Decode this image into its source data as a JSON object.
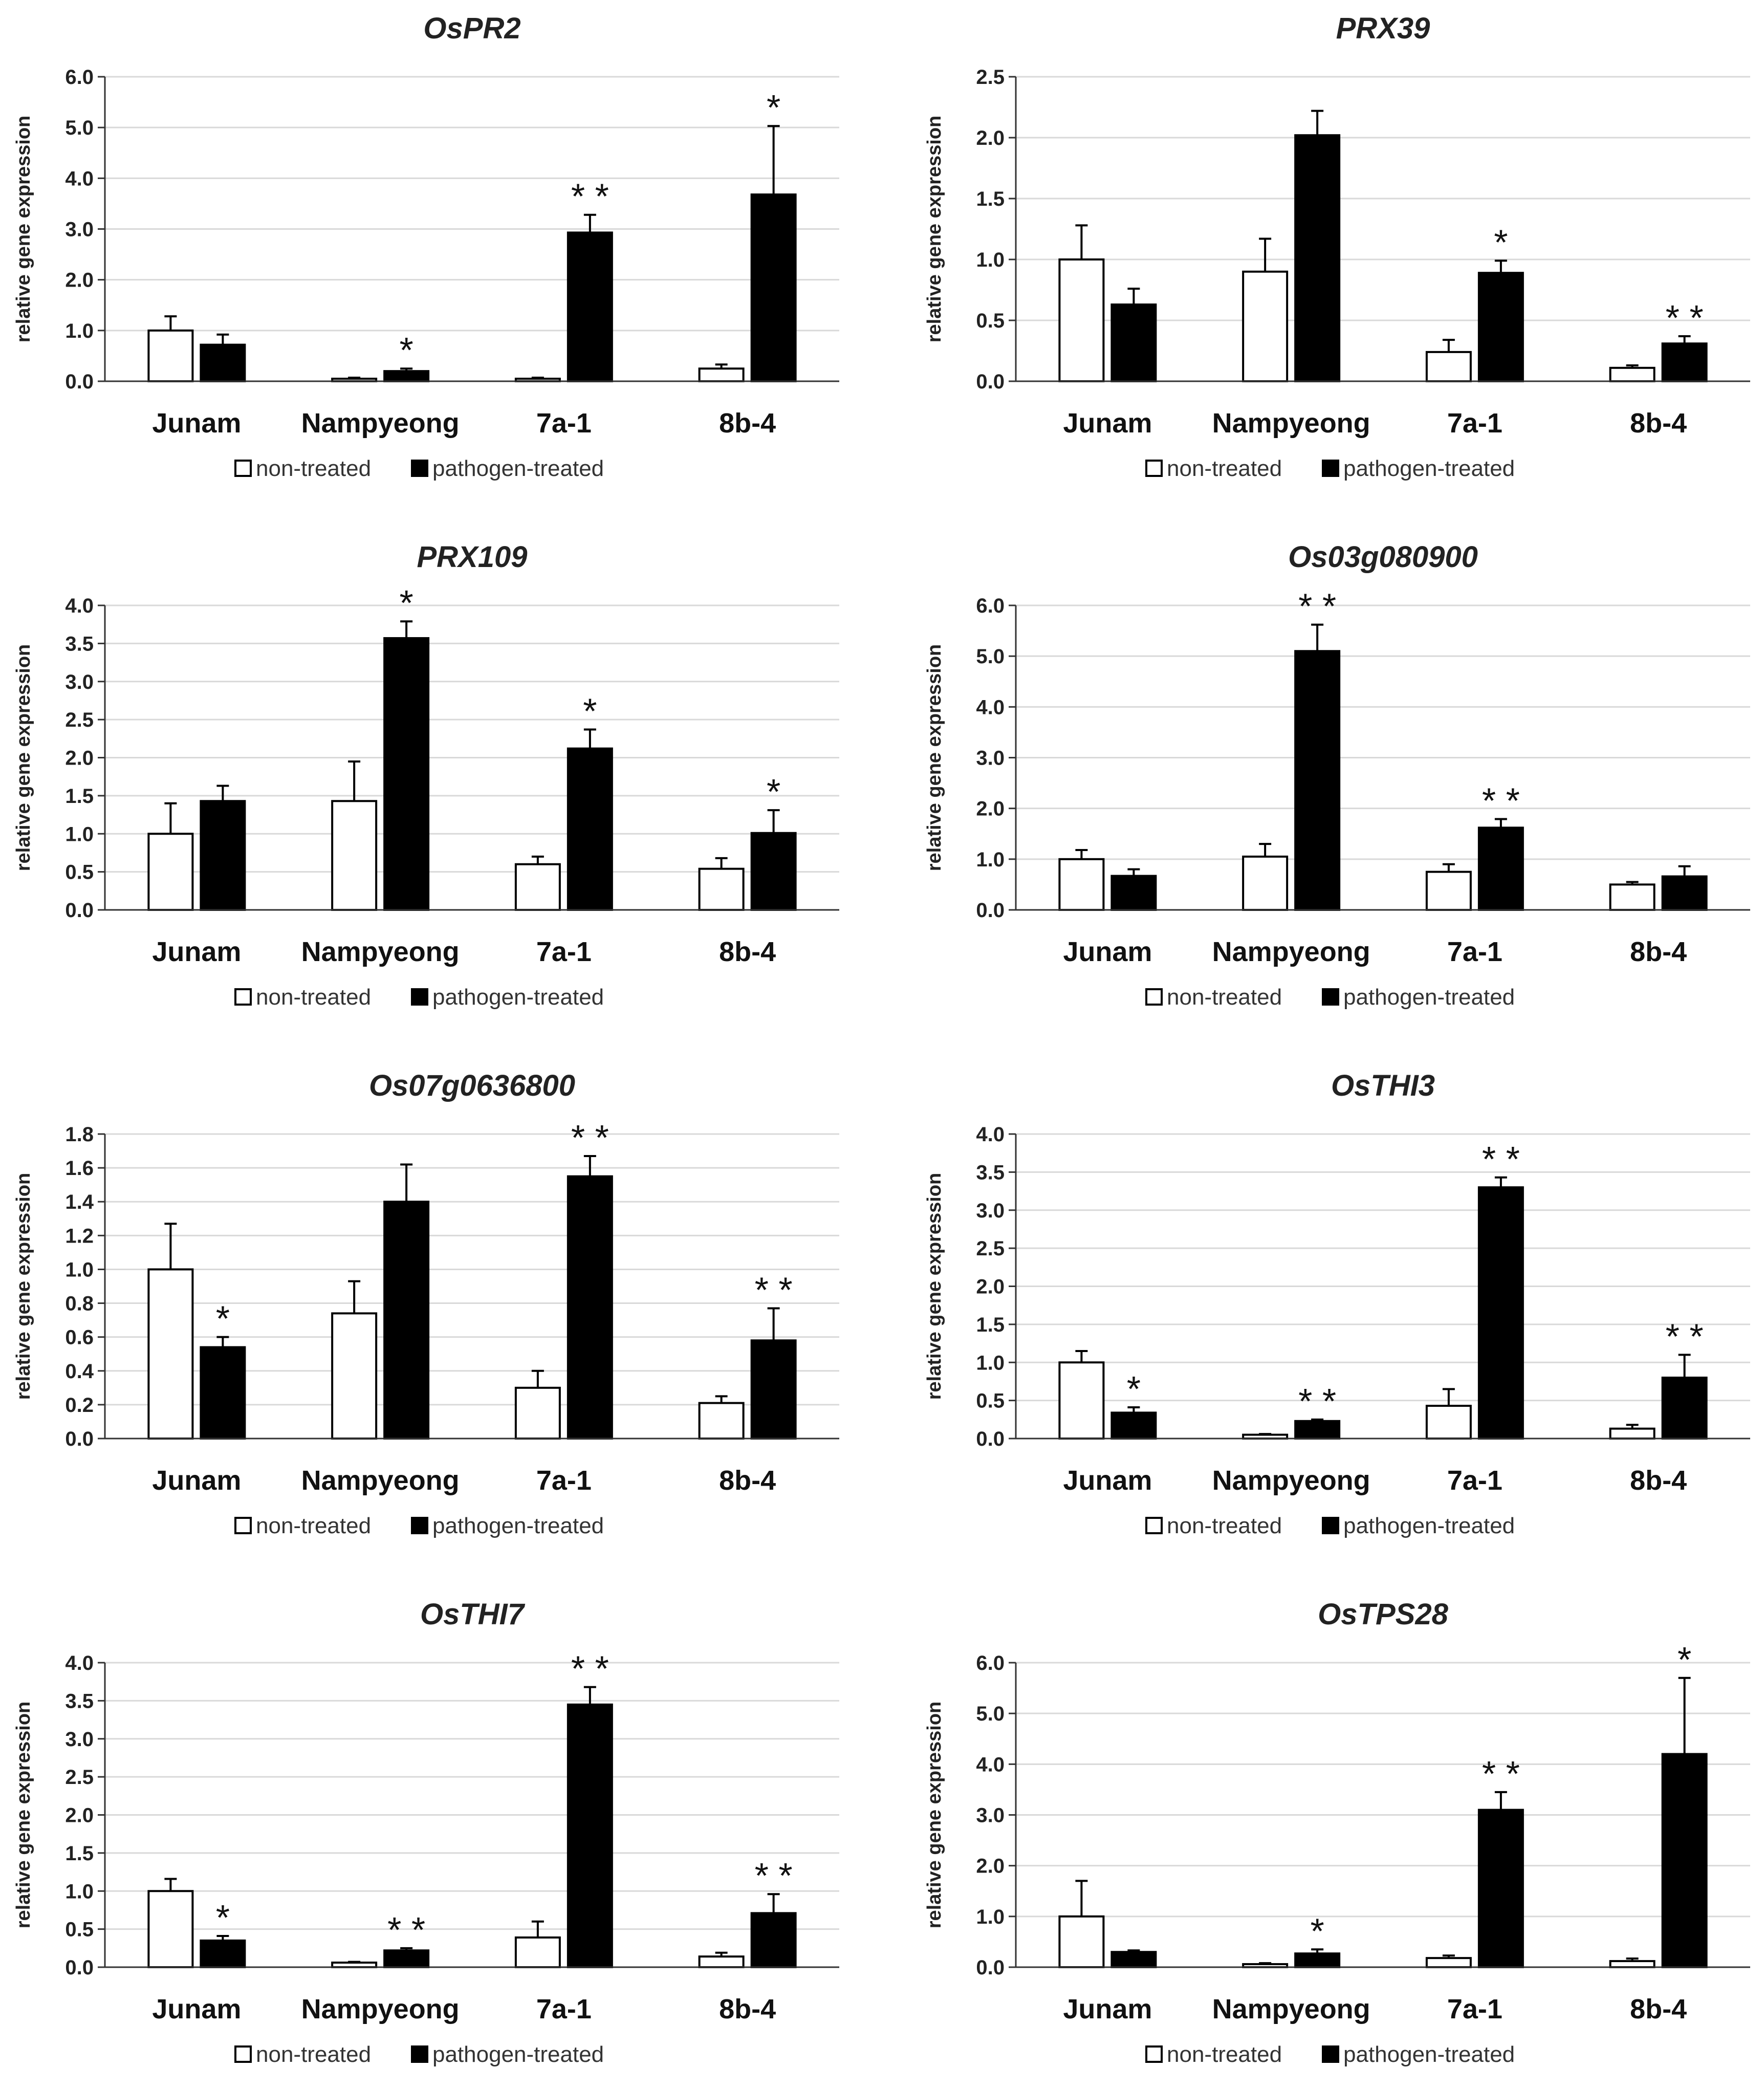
{
  "chart_data": [
    {
      "type": "bar",
      "title": "OsPR2",
      "ylabel": "relative gene expression",
      "ylim": [
        0,
        6
      ],
      "yticks": [
        "0.0",
        "1.0",
        "2.0",
        "3.0",
        "4.0",
        "5.0",
        "6.0"
      ],
      "categories": [
        "Junam",
        "Nampyeong",
        "7a-1",
        "8b-4"
      ],
      "series": [
        {
          "name": "non-treated",
          "color": "#ffffff",
          "values": [
            1.0,
            0.05,
            0.05,
            0.25
          ],
          "errors": [
            0.28,
            0.02,
            0.02,
            0.08
          ]
        },
        {
          "name": "pathogen-treated",
          "color": "#000000",
          "values": [
            0.72,
            0.2,
            2.93,
            3.68
          ],
          "errors": [
            0.2,
            0.05,
            0.35,
            1.35
          ]
        }
      ],
      "significance": [
        "",
        "*",
        "**",
        "*"
      ],
      "legend": [
        "non-treated",
        "pathogen-treated"
      ]
    },
    {
      "type": "bar",
      "title": "PRX39",
      "ylabel": "relative gene expression",
      "ylim": [
        0,
        2.5
      ],
      "yticks": [
        "0.0",
        "0.5",
        "1.0",
        "1.5",
        "2.0",
        "2.5"
      ],
      "categories": [
        "Junam",
        "Nampyeong",
        "7a-1",
        "8b-4"
      ],
      "series": [
        {
          "name": "non-treated",
          "color": "#ffffff",
          "values": [
            1.0,
            0.9,
            0.24,
            0.11
          ],
          "errors": [
            0.28,
            0.27,
            0.1,
            0.02
          ]
        },
        {
          "name": "pathogen-treated",
          "color": "#000000",
          "values": [
            0.63,
            2.02,
            0.89,
            0.31
          ],
          "errors": [
            0.13,
            0.2,
            0.1,
            0.06
          ]
        }
      ],
      "significance": [
        "",
        "",
        "*",
        "**"
      ],
      "legend": [
        "non-treated",
        "pathogen-treated"
      ]
    },
    {
      "type": "bar",
      "title": "PRX109",
      "ylabel": "relative gene expression",
      "ylim": [
        0,
        4
      ],
      "yticks": [
        "0.0",
        "0.5",
        "1.0",
        "1.5",
        "2.0",
        "2.5",
        "3.0",
        "3.5",
        "4.0"
      ],
      "categories": [
        "Junam",
        "Nampyeong",
        "7a-1",
        "8b-4"
      ],
      "series": [
        {
          "name": "non-treated",
          "color": "#ffffff",
          "values": [
            1.0,
            1.43,
            0.6,
            0.54
          ],
          "errors": [
            0.4,
            0.52,
            0.1,
            0.14
          ]
        },
        {
          "name": "pathogen-treated",
          "color": "#000000",
          "values": [
            1.43,
            3.57,
            2.12,
            1.01
          ],
          "errors": [
            0.2,
            0.22,
            0.25,
            0.3
          ]
        }
      ],
      "significance": [
        "",
        "*",
        "*",
        "*"
      ],
      "legend": [
        "non-treated",
        "pathogen-treated"
      ]
    },
    {
      "type": "bar",
      "title": "Os03g080900",
      "ylabel": "relative gene expression",
      "ylim": [
        0,
        6
      ],
      "yticks": [
        "0.0",
        "1.0",
        "2.0",
        "3.0",
        "4.0",
        "5.0",
        "6.0"
      ],
      "categories": [
        "Junam",
        "Nampyeong",
        "7a-1",
        "8b-4"
      ],
      "series": [
        {
          "name": "non-treated",
          "color": "#ffffff",
          "values": [
            1.0,
            1.05,
            0.75,
            0.5
          ],
          "errors": [
            0.18,
            0.25,
            0.15,
            0.05
          ]
        },
        {
          "name": "pathogen-treated",
          "color": "#000000",
          "values": [
            0.67,
            5.1,
            1.62,
            0.66
          ],
          "errors": [
            0.13,
            0.52,
            0.17,
            0.2
          ]
        }
      ],
      "significance": [
        "",
        "**",
        "**",
        ""
      ],
      "legend": [
        "non-treated",
        "pathogen-treated"
      ]
    },
    {
      "type": "bar",
      "title": "Os07g0636800",
      "ylabel": "relative gene expression",
      "ylim": [
        0,
        1.8
      ],
      "yticks": [
        "0.0",
        "0.2",
        "0.4",
        "0.6",
        "0.8",
        "1.0",
        "1.2",
        "1.4",
        "1.6",
        "1.8"
      ],
      "categories": [
        "Junam",
        "Nampyeong",
        "7a-1",
        "8b-4"
      ],
      "series": [
        {
          "name": "non-treated",
          "color": "#ffffff",
          "values": [
            1.0,
            0.74,
            0.3,
            0.21
          ],
          "errors": [
            0.27,
            0.19,
            0.1,
            0.04
          ]
        },
        {
          "name": "pathogen-treated",
          "color": "#000000",
          "values": [
            0.54,
            1.4,
            1.55,
            0.58
          ],
          "errors": [
            0.06,
            0.22,
            0.12,
            0.19
          ]
        }
      ],
      "significance": [
        "*",
        "",
        "**",
        "**"
      ],
      "legend": [
        "non-treated",
        "pathogen-treated"
      ]
    },
    {
      "type": "bar",
      "title": "OsTHI3",
      "ylabel": "relative gene expression",
      "ylim": [
        0,
        4
      ],
      "yticks": [
        "0.0",
        "0.5",
        "1.0",
        "1.5",
        "2.0",
        "2.5",
        "3.0",
        "3.5",
        "4.0"
      ],
      "categories": [
        "Junam",
        "Nampyeong",
        "7a-1",
        "8b-4"
      ],
      "series": [
        {
          "name": "non-treated",
          "color": "#ffffff",
          "values": [
            1.0,
            0.05,
            0.43,
            0.13
          ],
          "errors": [
            0.15,
            0.01,
            0.22,
            0.05
          ]
        },
        {
          "name": "pathogen-treated",
          "color": "#000000",
          "values": [
            0.34,
            0.23,
            3.3,
            0.8
          ],
          "errors": [
            0.07,
            0.02,
            0.13,
            0.3
          ]
        }
      ],
      "significance": [
        "*",
        "**",
        "**",
        "**"
      ],
      "legend": [
        "non-treated",
        "pathogen-treated"
      ]
    },
    {
      "type": "bar",
      "title": "OsTHI7",
      "ylabel": "relative gene expression",
      "ylim": [
        0,
        4
      ],
      "yticks": [
        "0.0",
        "0.5",
        "1.0",
        "1.5",
        "2.0",
        "2.5",
        "3.0",
        "3.5",
        "4.0"
      ],
      "categories": [
        "Junam",
        "Nampyeong",
        "7a-1",
        "8b-4"
      ],
      "series": [
        {
          "name": "non-treated",
          "color": "#ffffff",
          "values": [
            1.0,
            0.06,
            0.39,
            0.14
          ],
          "errors": [
            0.16,
            0.01,
            0.21,
            0.05
          ]
        },
        {
          "name": "pathogen-treated",
          "color": "#000000",
          "values": [
            0.35,
            0.22,
            3.45,
            0.71
          ],
          "errors": [
            0.06,
            0.03,
            0.23,
            0.25
          ]
        }
      ],
      "significance": [
        "*",
        "**",
        "**",
        "**"
      ],
      "legend": [
        "non-treated",
        "pathogen-treated"
      ]
    },
    {
      "type": "bar",
      "title": "OsTPS28",
      "ylabel": "relative gene expression",
      "ylim": [
        0,
        6
      ],
      "yticks": [
        "0.0",
        "1.0",
        "2.0",
        "3.0",
        "4.0",
        "5.0",
        "6.0"
      ],
      "categories": [
        "Junam",
        "Nampyeong",
        "7a-1",
        "8b-4"
      ],
      "series": [
        {
          "name": "non-treated",
          "color": "#ffffff",
          "values": [
            1.0,
            0.06,
            0.18,
            0.12
          ],
          "errors": [
            0.7,
            0.02,
            0.05,
            0.05
          ]
        },
        {
          "name": "pathogen-treated",
          "color": "#000000",
          "values": [
            0.3,
            0.27,
            3.1,
            4.2
          ],
          "errors": [
            0.03,
            0.08,
            0.35,
            1.5
          ]
        }
      ],
      "significance": [
        "",
        "*",
        "**",
        "*"
      ],
      "legend": [
        "non-treated",
        "pathogen-treated"
      ]
    }
  ]
}
